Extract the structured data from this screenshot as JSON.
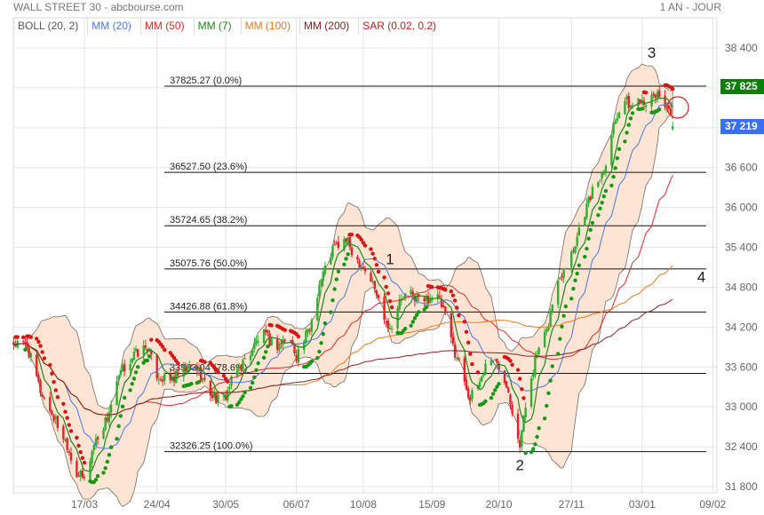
{
  "header": {
    "title": "WALL STREET 30 - abcbourse.com",
    "period": "1 AN - JOUR"
  },
  "legend": [
    {
      "label": "BOLL (20, 2)",
      "color": "#555555"
    },
    {
      "label": "MM (20)",
      "color": "#4a78e6"
    },
    {
      "label": "MM (50)",
      "color": "#e8282b"
    },
    {
      "label": "MM (7)",
      "color": "#178a17"
    },
    {
      "label": "MM (100)",
      "color": "#f07820"
    },
    {
      "label": "MM (200)",
      "color": "#8b2020"
    },
    {
      "label": "SAR (0.02, 0.2)",
      "color": "#cc1a1a"
    }
  ],
  "price_tags": [
    {
      "label": "37 825",
      "value": 37825,
      "color": "#0b7d0b"
    },
    {
      "label": "37 219",
      "value": 37219,
      "color": "#3a6ff0"
    }
  ],
  "fibonacci": [
    {
      "label": "37825.27  (0.0%)",
      "value": 37825.27
    },
    {
      "label": "36527.50  (23.6%)",
      "value": 36527.5
    },
    {
      "label": "35724.65  (38.2%)",
      "value": 35724.65
    },
    {
      "label": "35075.76  (50.0%)",
      "value": 35075.76
    },
    {
      "label": "34426.88  (61.8%)",
      "value": 34426.88
    },
    {
      "label": "33503.04  (78.6%)",
      "value": 33503.04
    },
    {
      "label": "32326.25  (100.0%)",
      "value": 32326.25
    }
  ],
  "annotations": [
    {
      "label": "1",
      "date": "24/08",
      "value": 35150
    },
    {
      "label": "2",
      "date": "31/10",
      "value": 32050
    },
    {
      "label": "3",
      "date": "08/01",
      "value": 38250
    },
    {
      "label": "4",
      "date": "03/02",
      "value": 34880
    }
  ],
  "chart_data": {
    "type": "candlestick",
    "title": "WALL STREET 30",
    "ylim": [
      31800,
      38600
    ],
    "y_ticks": [
      {
        "v": 38400,
        "label": "38 400"
      },
      {
        "v": 37800,
        "label": ""
      },
      {
        "v": 37200,
        "label": ""
      },
      {
        "v": 36600,
        "label": "36 600"
      },
      {
        "v": 36000,
        "label": "36 000"
      },
      {
        "v": 35400,
        "label": "35 400"
      },
      {
        "v": 34800,
        "label": "34 800"
      },
      {
        "v": 34200,
        "label": "34 200"
      },
      {
        "v": 33600,
        "label": "33 600"
      },
      {
        "v": 33000,
        "label": "33 000"
      },
      {
        "v": 32400,
        "label": "32 400"
      },
      {
        "v": 31800,
        "label": "31 800"
      }
    ],
    "x_ticks": [
      "17/03",
      "24/04",
      "30/05",
      "06/07",
      "10/08",
      "15/09",
      "20/10",
      "27/11",
      "03/01",
      "09/02"
    ],
    "grid": true,
    "close": [
      [
        "08/02",
        33950
      ],
      [
        "15/02",
        33910
      ],
      [
        "22/02",
        33240
      ],
      [
        "01/03",
        32840
      ],
      [
        "08/03",
        32440
      ],
      [
        "12/03",
        32040
      ],
      [
        "17/03",
        31900
      ],
      [
        "22/03",
        32440
      ],
      [
        "29/03",
        32840
      ],
      [
        "05/04",
        33510
      ],
      [
        "12/04",
        33780
      ],
      [
        "19/04",
        33910
      ],
      [
        "23/04",
        33510
      ],
      [
        "30/04",
        33380
      ],
      [
        "07/05",
        33510
      ],
      [
        "14/05",
        33640
      ],
      [
        "21/05",
        33240
      ],
      [
        "28/05",
        33040
      ],
      [
        "04/06",
        33510
      ],
      [
        "11/06",
        33780
      ],
      [
        "18/06",
        34110
      ],
      [
        "25/06",
        33910
      ],
      [
        "02/07",
        34050
      ],
      [
        "06/07",
        33780
      ],
      [
        "13/07",
        34180
      ],
      [
        "18/07",
        34850
      ],
      [
        "25/07",
        35380
      ],
      [
        "01/08",
        35510
      ],
      [
        "06/08",
        35250
      ],
      [
        "10/08",
        35110
      ],
      [
        "15/08",
        34850
      ],
      [
        "20/08",
        34450
      ],
      [
        "24/08",
        34180
      ],
      [
        "29/08",
        34580
      ],
      [
        "03/09",
        34710
      ],
      [
        "10/09",
        34580
      ],
      [
        "17/09",
        34710
      ],
      [
        "21/09",
        34450
      ],
      [
        "26/09",
        33910
      ],
      [
        "01/10",
        33510
      ],
      [
        "05/10",
        33110
      ],
      [
        "10/10",
        33380
      ],
      [
        "15/10",
        33780
      ],
      [
        "19/10",
        33640
      ],
      [
        "24/10",
        33380
      ],
      [
        "29/10",
        32710
      ],
      [
        "31/10",
        32440
      ],
      [
        "05/11",
        33380
      ],
      [
        "09/11",
        33780
      ],
      [
        "14/11",
        34110
      ],
      [
        "18/11",
        34710
      ],
      [
        "23/11",
        35110
      ],
      [
        "28/11",
        35380
      ],
      [
        "02/12",
        35780
      ],
      [
        "07/12",
        36180
      ],
      [
        "14/12",
        36580
      ],
      [
        "19/12",
        37250
      ],
      [
        "24/12",
        37650
      ],
      [
        "28/12",
        37520
      ],
      [
        "02/01",
        37650
      ],
      [
        "07/01",
        37580
      ],
      [
        "11/01",
        37720
      ],
      [
        "16/01",
        37520
      ],
      [
        "19/01",
        37219
      ]
    ]
  }
}
